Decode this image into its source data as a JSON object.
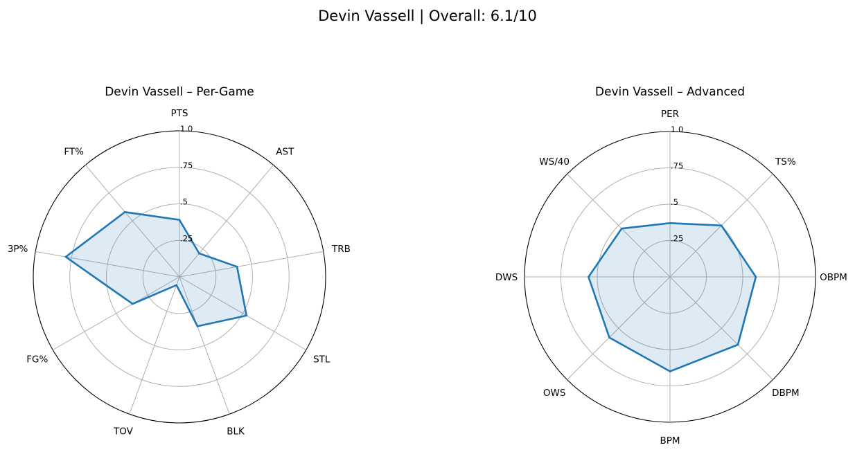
{
  "figure": {
    "title": "Devin Vassell | Overall: 6.1/10"
  },
  "chart_data": [
    {
      "type": "radar",
      "title": "Devin Vassell – Per-Game",
      "axes": [
        "PTS",
        "AST",
        "TRB",
        "STL",
        "BLK",
        "TOV",
        "FG%",
        "3P%",
        "FT%"
      ],
      "values": [
        0.39,
        0.21,
        0.4,
        0.53,
        0.36,
        0.06,
        0.37,
        0.79,
        0.58
      ],
      "radial_ticks": [
        0.25,
        0.5,
        0.75,
        1.0
      ],
      "radial_tick_labels": [
        ".25",
        ".5",
        ".75",
        "1.0"
      ],
      "rlim": [
        0,
        1
      ],
      "grid": true,
      "color": "#1f77b4",
      "fill_color": "#1f77b4"
    },
    {
      "type": "radar",
      "title": "Devin Vassell – Advanced",
      "axes": [
        "PER",
        "TS%",
        "OBPM",
        "DBPM",
        "BPM",
        "OWS",
        "DWS",
        "WS/40"
      ],
      "values": [
        0.37,
        0.5,
        0.59,
        0.66,
        0.65,
        0.59,
        0.56,
        0.47
      ],
      "radial_ticks": [
        0.25,
        0.5,
        0.75,
        1.0
      ],
      "radial_tick_labels": [
        ".25",
        ".5",
        ".75",
        "1.0"
      ],
      "rlim": [
        0,
        1
      ],
      "grid": true,
      "color": "#1f77b4",
      "fill_color": "#1f77b4"
    }
  ]
}
